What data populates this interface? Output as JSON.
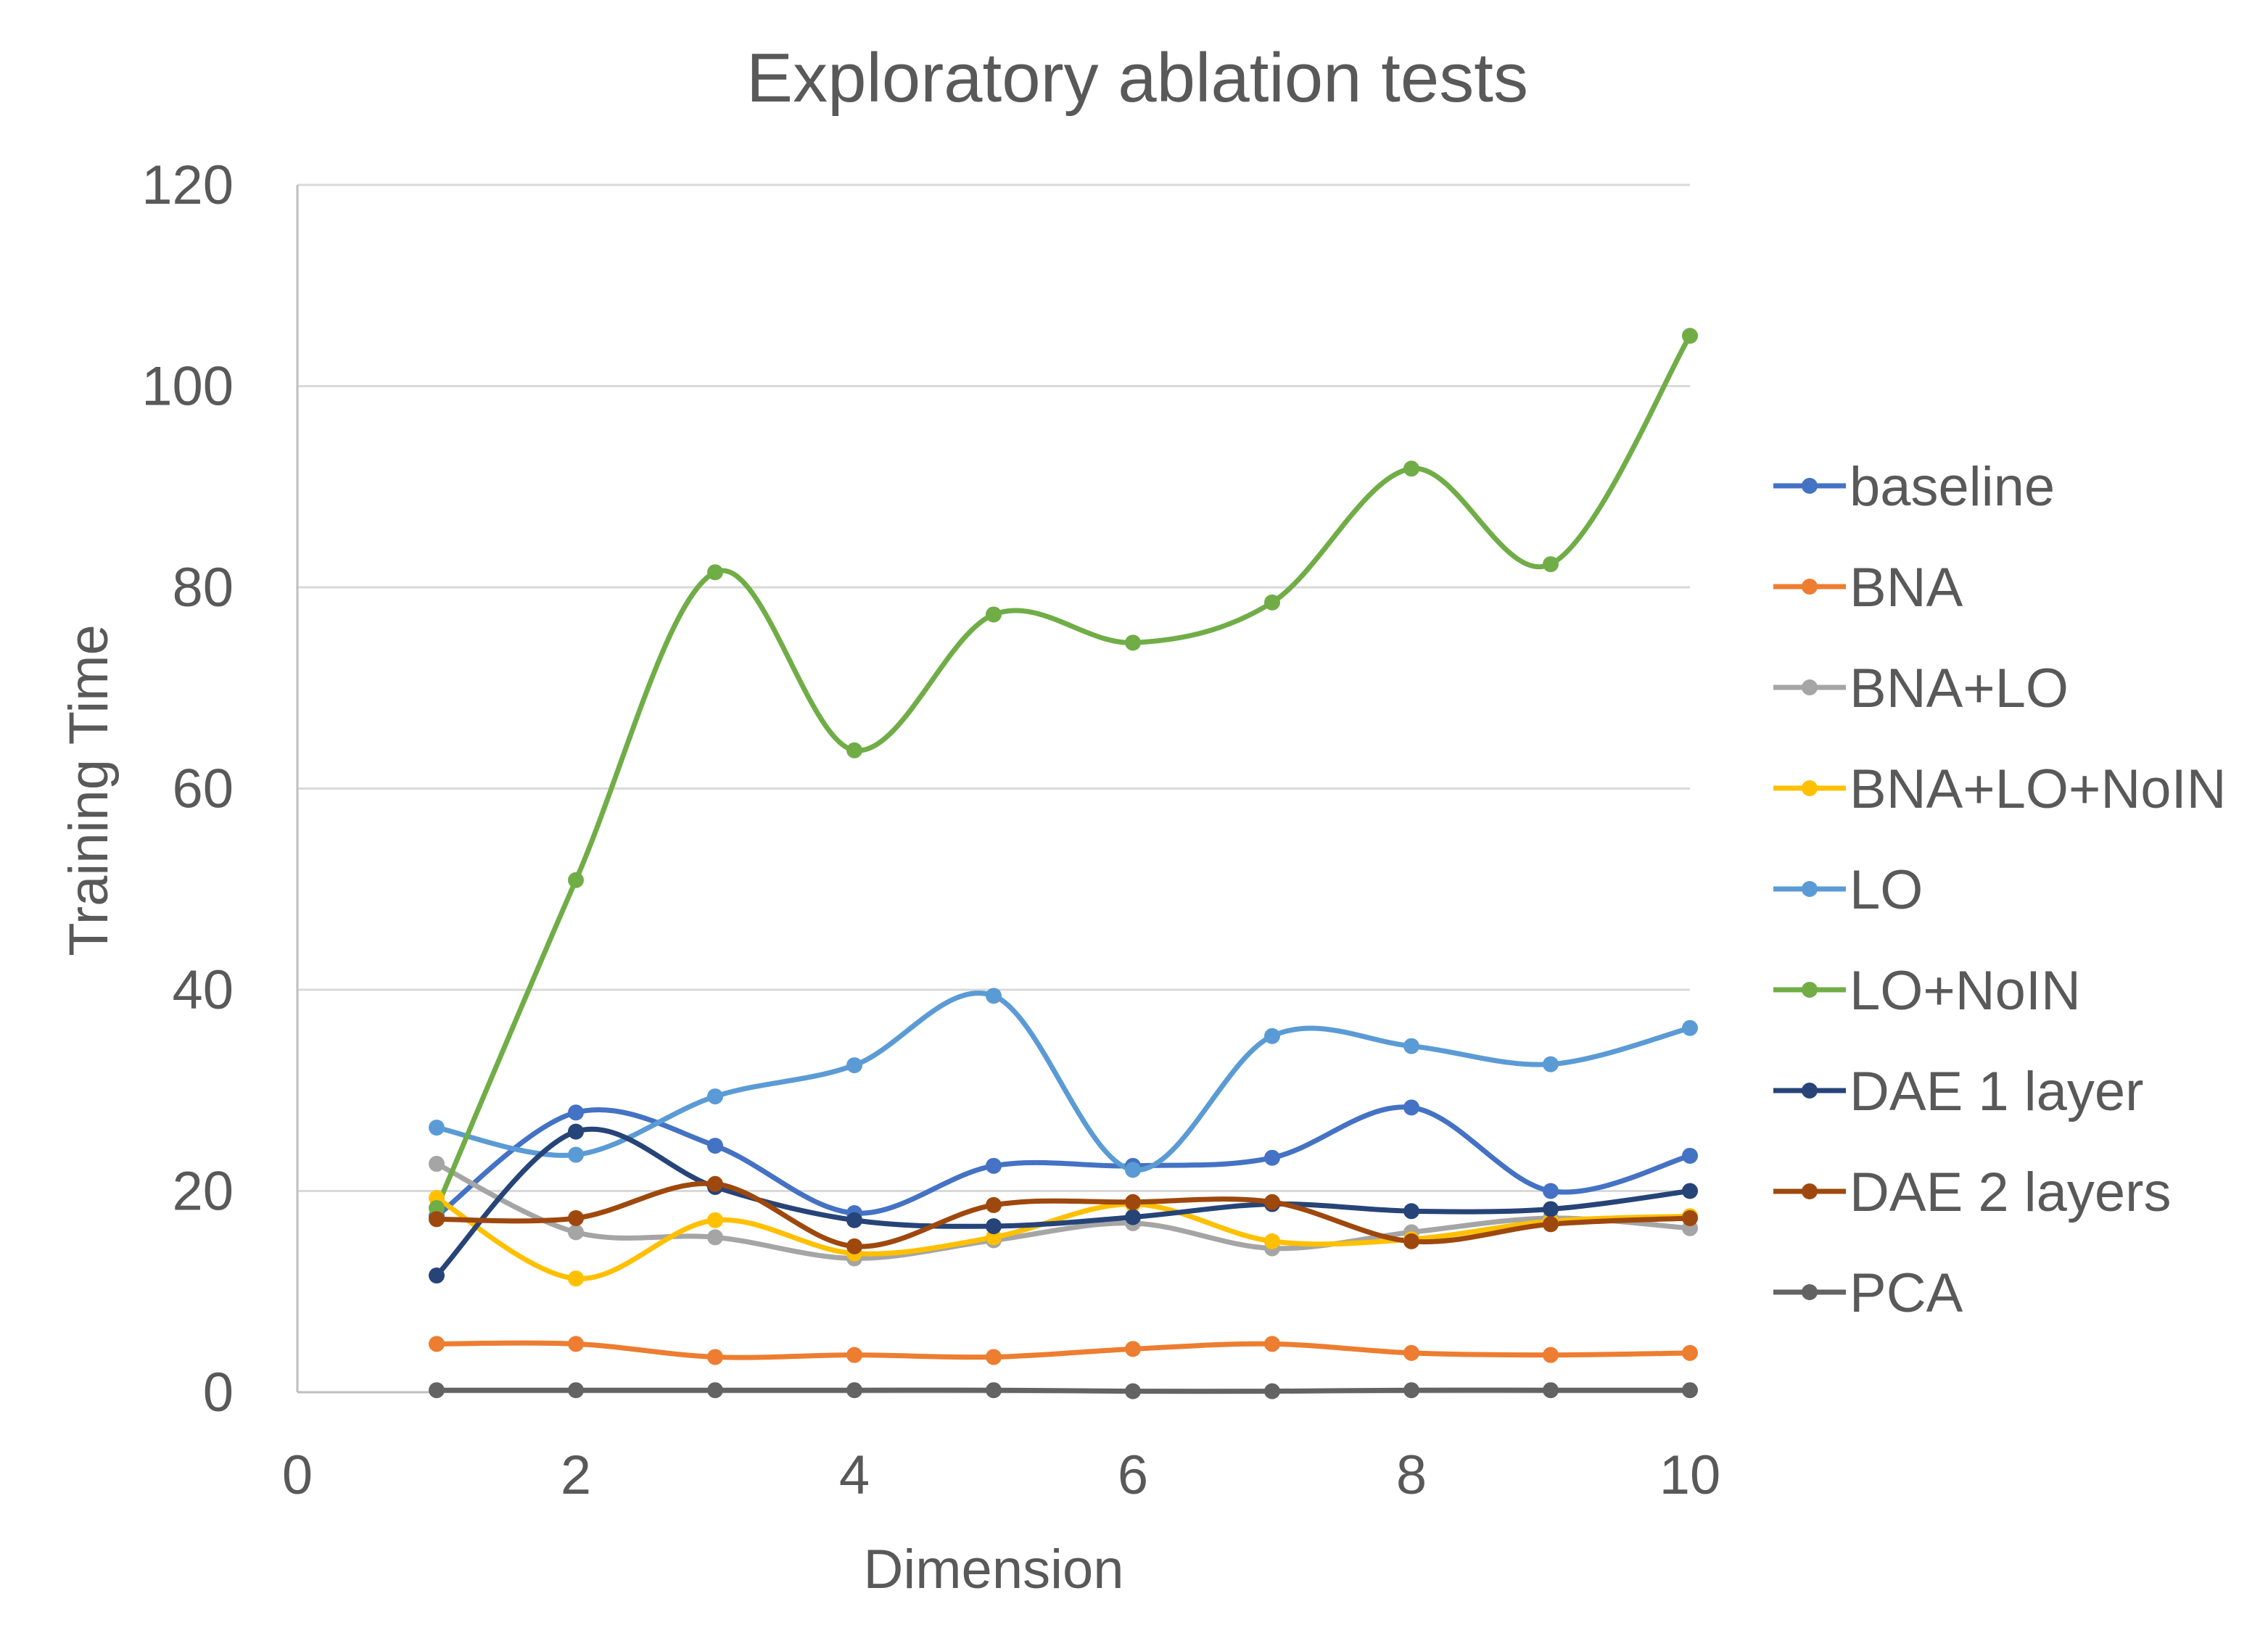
{
  "chart_data": {
    "type": "line",
    "title": "Exploratory ablation tests",
    "xlabel": "Dimension",
    "ylabel": "Training Time",
    "xlim": [
      0,
      10
    ],
    "ylim": [
      0,
      120
    ],
    "xticks": [
      "0",
      "2",
      "4",
      "6",
      "8",
      "10"
    ],
    "yticks": [
      "0",
      "20",
      "40",
      "60",
      "80",
      "100",
      "120"
    ],
    "grid": true,
    "legend_position": "right",
    "smooth": true,
    "x": [
      1,
      2,
      3,
      4,
      5,
      6,
      7,
      8,
      9,
      10
    ],
    "series": [
      {
        "name": "baseline",
        "color": "#4472C4",
        "values": [
          17.5,
          27.8,
          24.5,
          17.8,
          22.5,
          22.5,
          23.3,
          28.3,
          20.0,
          23.5
        ]
      },
      {
        "name": "BNA",
        "color": "#ED7D31",
        "values": [
          4.8,
          4.8,
          3.5,
          3.7,
          3.5,
          4.3,
          4.8,
          3.9,
          3.7,
          3.9
        ]
      },
      {
        "name": "BNA+LO",
        "color": "#A5A5A5",
        "values": [
          22.7,
          15.9,
          15.4,
          13.3,
          15.1,
          16.8,
          14.3,
          15.9,
          17.3,
          16.3
        ]
      },
      {
        "name": "BNA+LO+NoIN",
        "color": "#FFC000",
        "values": [
          19.3,
          11.3,
          17.1,
          13.8,
          15.4,
          18.7,
          15.0,
          15.2,
          17.0,
          17.5
        ]
      },
      {
        "name": "LO",
        "color": "#5B9BD5",
        "values": [
          26.3,
          23.6,
          29.4,
          32.5,
          39.4,
          22.1,
          35.4,
          34.4,
          32.6,
          36.2
        ]
      },
      {
        "name": "LO+NoIN",
        "color": "#70AD47",
        "values": [
          18.3,
          50.9,
          81.5,
          63.8,
          77.3,
          74.5,
          78.5,
          91.8,
          82.3,
          105.0
        ]
      },
      {
        "name": "DAE 1 layer",
        "color": "#264478",
        "values": [
          11.6,
          25.9,
          20.4,
          17.1,
          16.5,
          17.4,
          18.7,
          18.0,
          18.2,
          20.0
        ]
      },
      {
        "name": "DAE 2 layers",
        "color": "#9E480E",
        "values": [
          17.2,
          17.3,
          20.7,
          14.5,
          18.6,
          18.9,
          18.9,
          15.0,
          16.7,
          17.3
        ]
      },
      {
        "name": "PCA",
        "color": "#636363",
        "values": [
          0.2,
          0.2,
          0.2,
          0.2,
          0.2,
          0.1,
          0.1,
          0.2,
          0.2,
          0.2
        ]
      }
    ]
  }
}
